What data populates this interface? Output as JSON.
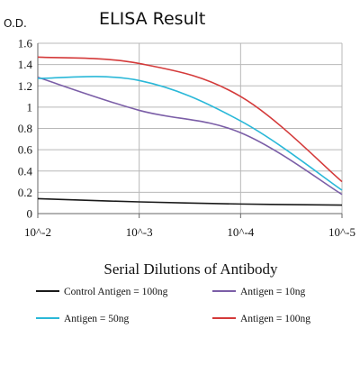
{
  "chart_data": {
    "type": "line",
    "title": "ELISA Result",
    "ylabel": "O.D.",
    "xlabel": "Serial Dilutions of Antibody",
    "x": [
      "10^-2",
      "10^-3",
      "10^-4",
      "10^-5"
    ],
    "ylim": [
      0,
      1.6
    ],
    "yticks": [
      "0",
      "0.2",
      "0.4",
      "0.6",
      "0.8",
      "1",
      "1.2",
      "1.4",
      "1.6"
    ],
    "grid": true,
    "legend_position": "bottom",
    "series": [
      {
        "name": "Control Antigen = 100ng",
        "color": "#1a1a1a",
        "values": [
          0.14,
          0.11,
          0.09,
          0.08
        ]
      },
      {
        "name": "Antigen = 10ng",
        "color": "#7b5ea7",
        "values": [
          1.28,
          0.97,
          0.76,
          0.18
        ]
      },
      {
        "name": "Antigen = 50ng",
        "color": "#2ab8d8",
        "values": [
          1.27,
          1.25,
          0.87,
          0.22
        ]
      },
      {
        "name": "Antigen = 100ng",
        "color": "#d43a3a",
        "values": [
          1.47,
          1.41,
          1.1,
          0.3
        ]
      }
    ]
  }
}
